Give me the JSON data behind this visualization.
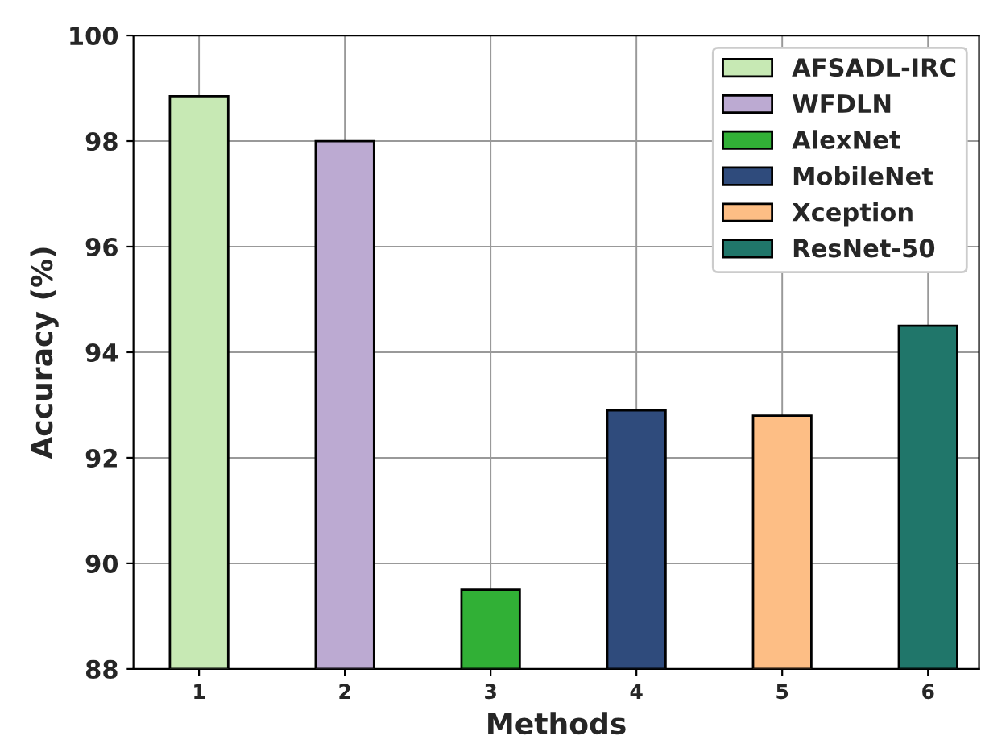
{
  "chart_data": {
    "type": "bar",
    "xlabel": "Methods",
    "ylabel": "Accuracy (%)",
    "categories": [
      "1",
      "2",
      "3",
      "4",
      "5",
      "6"
    ],
    "series": [
      {
        "name": "AFSADL-IRC",
        "color": "#c7e9b4",
        "values": [
          98.85,
          null,
          null,
          null,
          null,
          null
        ]
      },
      {
        "name": "WFDLN",
        "color": "#bcaad2",
        "values": [
          null,
          98.0,
          null,
          null,
          null,
          null
        ]
      },
      {
        "name": "AlexNet",
        "color": "#31b036",
        "values": [
          null,
          null,
          89.5,
          null,
          null,
          null
        ]
      },
      {
        "name": "MobileNet",
        "color": "#2f4b7c",
        "values": [
          null,
          null,
          null,
          92.9,
          null,
          null
        ]
      },
      {
        "name": "Xception",
        "color": "#fdbe85",
        "values": [
          null,
          null,
          null,
          null,
          92.8,
          null
        ]
      },
      {
        "name": "ResNet-50",
        "color": "#20766a",
        "values": [
          null,
          null,
          null,
          null,
          null,
          94.5
        ]
      }
    ],
    "ylim": [
      88,
      100
    ],
    "yticks": [
      88,
      90,
      92,
      94,
      96,
      98,
      100
    ],
    "grid": true,
    "legend": "top right"
  }
}
